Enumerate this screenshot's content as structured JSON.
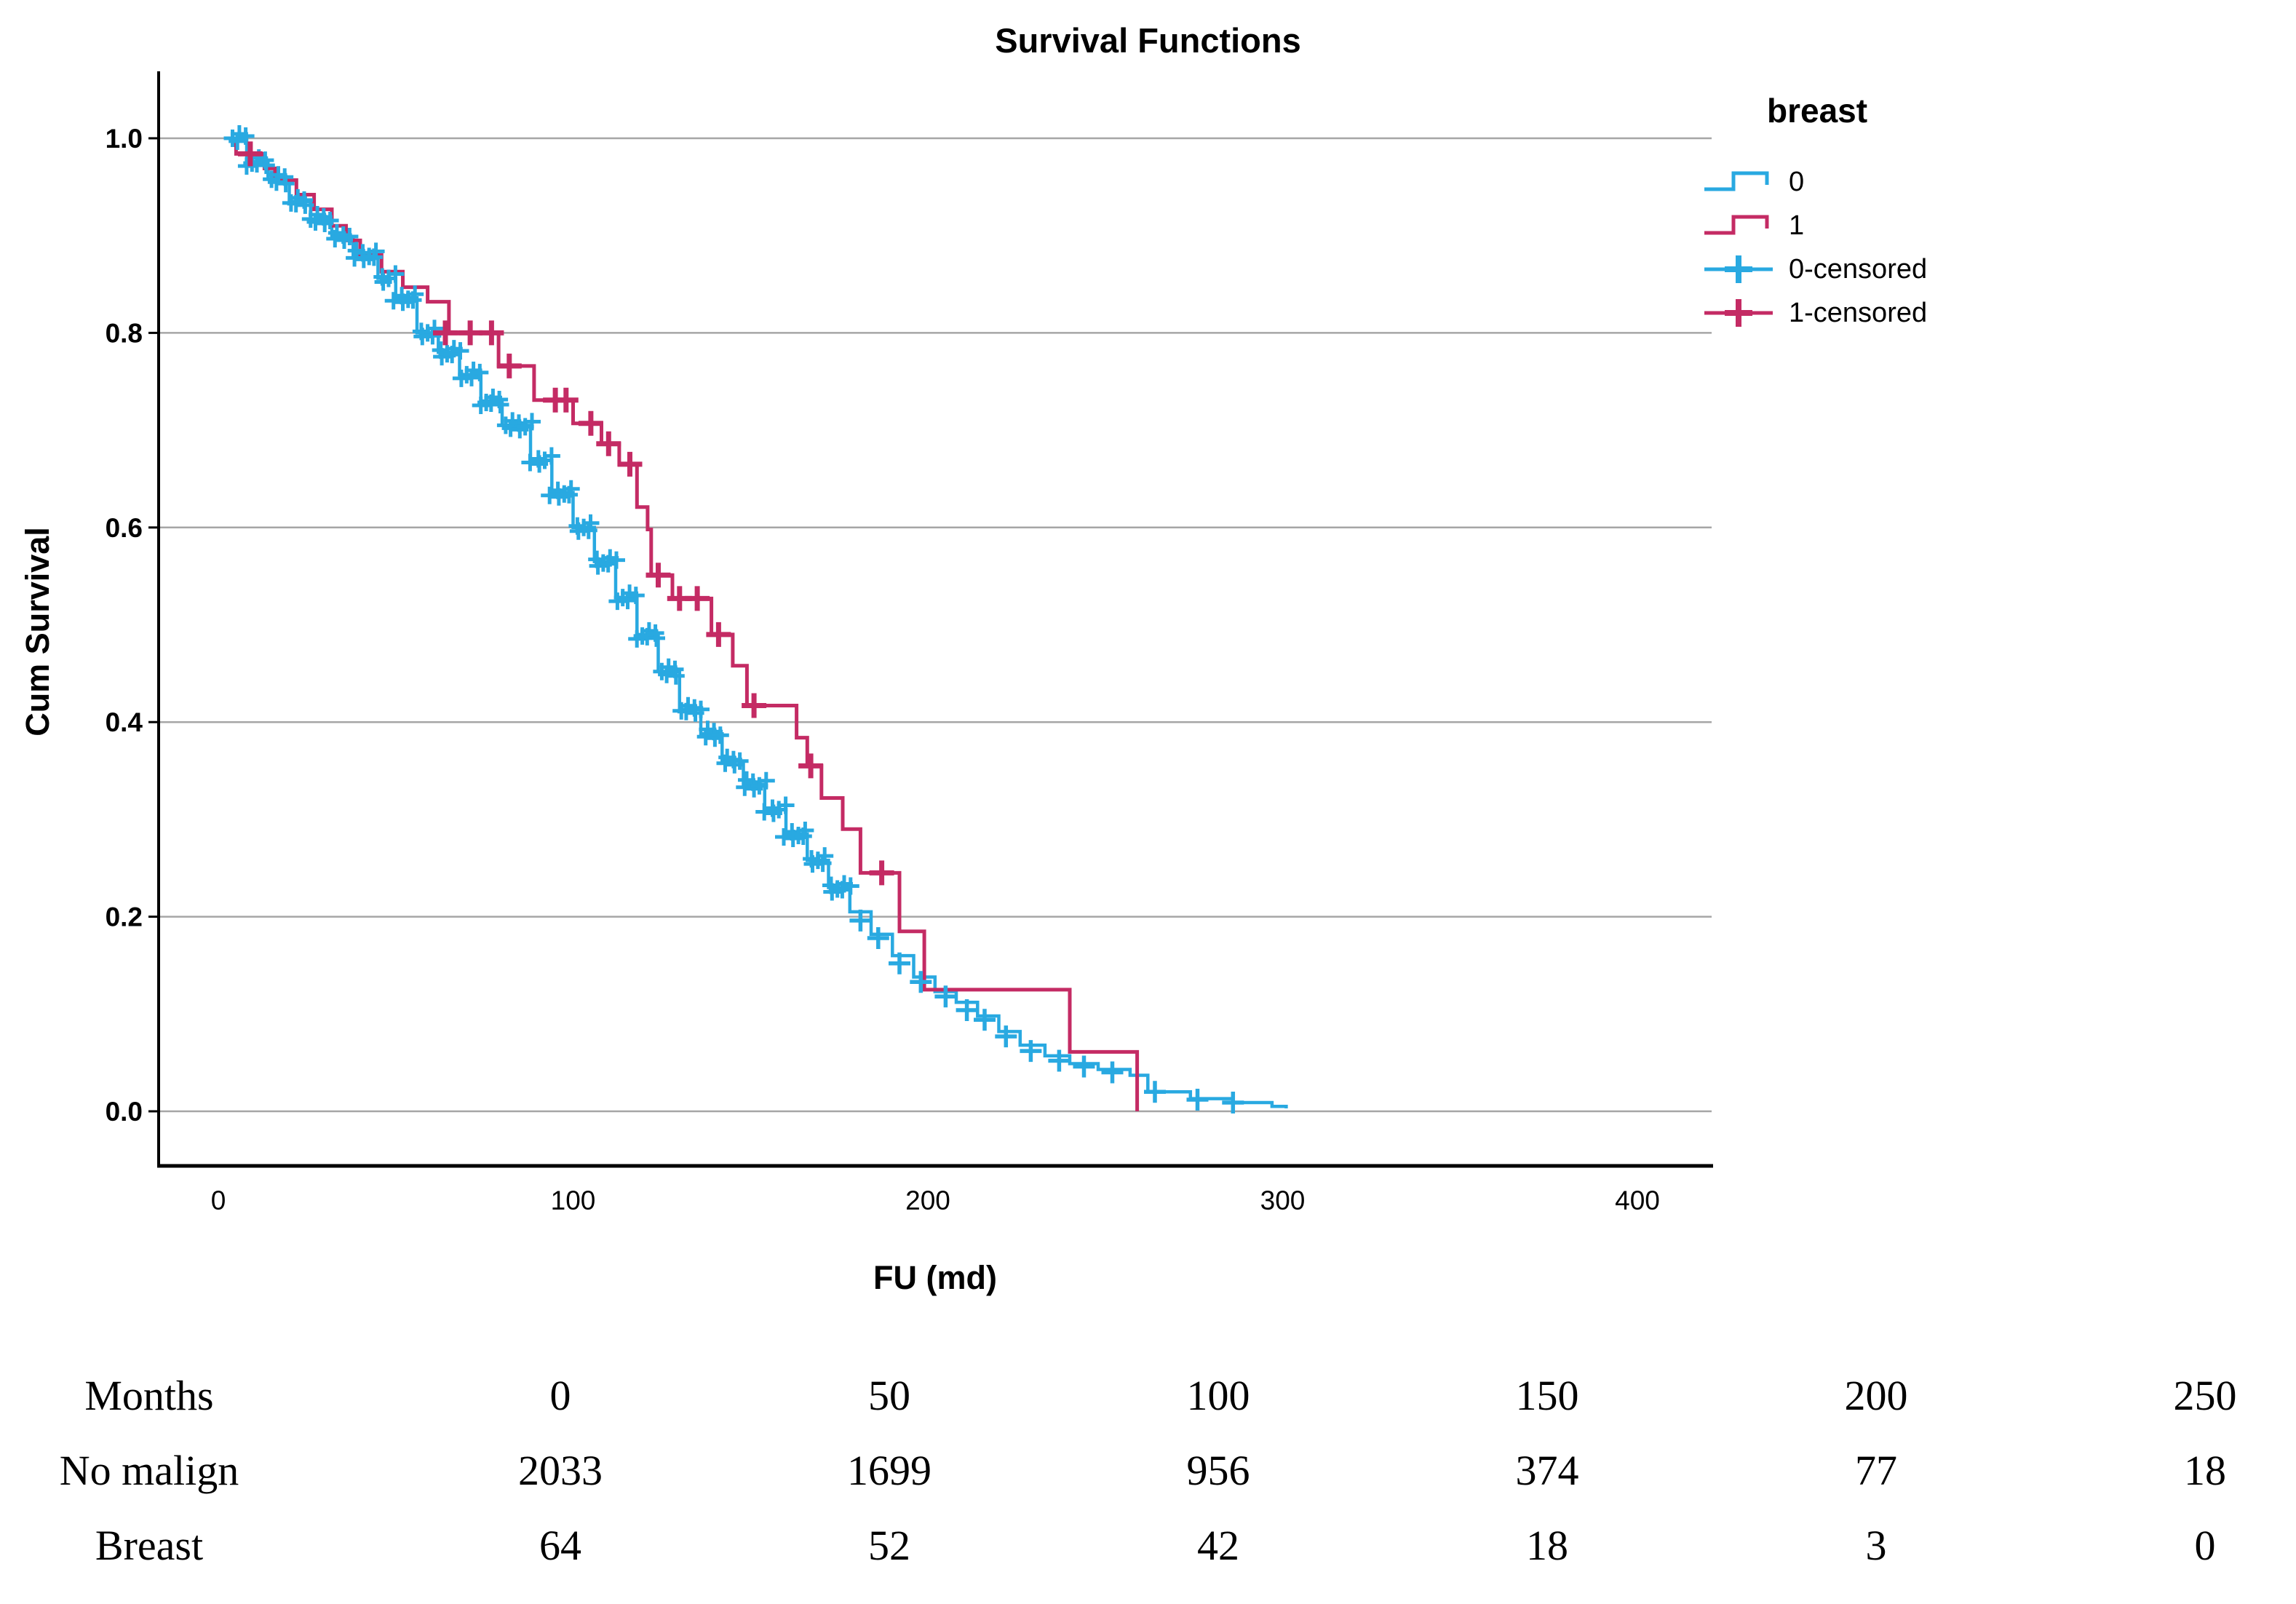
{
  "chart_data": {
    "type": "line",
    "subtype": "kaplan-meier-step-function",
    "title": "Survival Functions",
    "xlabel": "FU (md)",
    "ylabel": "Cum Survival",
    "xlim": [
      0,
      400
    ],
    "ylim": [
      0.0,
      1.0
    ],
    "grid": "horizontal",
    "x_ticks": [
      0,
      100,
      200,
      300,
      400
    ],
    "y_ticks": [
      1.0,
      0.8,
      0.6,
      0.4,
      0.2,
      0.0
    ],
    "colors": {
      "series0": "#29A9E1",
      "series1": "#C42B64",
      "gridline": "#A6A6A6",
      "axis": "#000000"
    },
    "legend": {
      "title": "breast",
      "position": "right",
      "entries": [
        {
          "label": "0",
          "type": "step",
          "color": "#29A9E1"
        },
        {
          "label": "1",
          "type": "step",
          "color": "#C42B64"
        },
        {
          "label": "0-censored",
          "type": "plus",
          "color": "#29A9E1"
        },
        {
          "label": "1-censored",
          "type": "plus",
          "color": "#C42B64"
        }
      ]
    },
    "series": [
      {
        "name": "0",
        "color": "#29A9E1",
        "points": [
          [
            3,
            1.0
          ],
          [
            8,
            0.976
          ],
          [
            14,
            0.958
          ],
          [
            20,
            0.935
          ],
          [
            26,
            0.917
          ],
          [
            32,
            0.899
          ],
          [
            38,
            0.88
          ],
          [
            45,
            0.856
          ],
          [
            50,
            0.836
          ],
          [
            56,
            0.8
          ],
          [
            62,
            0.78
          ],
          [
            68,
            0.757
          ],
          [
            74,
            0.73
          ],
          [
            80,
            0.705
          ],
          [
            88,
            0.669
          ],
          [
            94,
            0.636
          ],
          [
            100,
            0.6
          ],
          [
            106,
            0.565
          ],
          [
            112,
            0.528
          ],
          [
            118,
            0.49
          ],
          [
            124,
            0.452
          ],
          [
            130,
            0.413
          ],
          [
            136,
            0.388
          ],
          [
            142,
            0.36
          ],
          [
            148,
            0.336
          ],
          [
            154,
            0.31
          ],
          [
            160,
            0.285
          ],
          [
            166,
            0.258
          ],
          [
            172,
            0.23
          ],
          [
            178,
            0.205
          ],
          [
            184,
            0.182
          ],
          [
            190,
            0.16
          ],
          [
            196,
            0.138
          ],
          [
            202,
            0.123
          ],
          [
            208,
            0.112
          ],
          [
            214,
            0.098
          ],
          [
            220,
            0.082
          ],
          [
            226,
            0.068
          ],
          [
            233,
            0.057
          ],
          [
            240,
            0.049
          ],
          [
            248,
            0.043
          ],
          [
            257,
            0.037
          ],
          [
            262,
            0.02
          ],
          [
            274,
            0.013
          ],
          [
            286,
            0.009
          ],
          [
            297,
            0.005
          ],
          [
            301,
            0.003
          ]
        ],
        "censor_band": {
          "from": 4,
          "to": 178,
          "step": 1.1
        },
        "censors": [
          [
            181,
            0.196
          ],
          [
            186,
            0.178
          ],
          [
            192,
            0.152
          ],
          [
            198,
            0.133
          ],
          [
            205,
            0.118
          ],
          [
            211,
            0.104
          ],
          [
            216,
            0.094
          ],
          [
            222,
            0.077
          ],
          [
            229,
            0.062
          ],
          [
            237,
            0.052
          ],
          [
            244,
            0.046
          ],
          [
            252,
            0.04
          ],
          [
            264,
            0.02
          ],
          [
            276,
            0.012
          ],
          [
            286,
            0.009
          ]
        ]
      },
      {
        "name": "1",
        "color": "#C42B64",
        "points": [
          [
            3,
            1.0
          ],
          [
            5,
            0.984
          ],
          [
            13,
            0.969
          ],
          [
            16,
            0.957
          ],
          [
            22,
            0.942
          ],
          [
            27,
            0.927
          ],
          [
            32,
            0.91
          ],
          [
            36,
            0.895
          ],
          [
            40,
            0.88
          ],
          [
            46,
            0.863
          ],
          [
            52,
            0.847
          ],
          [
            59,
            0.832
          ],
          [
            65,
            0.8
          ],
          [
            79,
            0.766
          ],
          [
            89,
            0.731
          ],
          [
            100,
            0.707
          ],
          [
            108,
            0.686
          ],
          [
            113,
            0.665
          ],
          [
            118,
            0.621
          ],
          [
            121,
            0.598
          ],
          [
            122,
            0.551
          ],
          [
            128,
            0.527
          ],
          [
            139,
            0.49
          ],
          [
            145,
            0.458
          ],
          [
            149,
            0.417
          ],
          [
            163,
            0.384
          ],
          [
            166,
            0.355
          ],
          [
            170,
            0.322
          ],
          [
            176,
            0.29
          ],
          [
            181,
            0.245
          ],
          [
            192,
            0.185
          ],
          [
            199,
            0.125
          ],
          [
            240,
            0.061
          ],
          [
            259,
            0.0
          ]
        ],
        "censors": [
          [
            9,
            0.984
          ],
          [
            64,
            0.8
          ],
          [
            71,
            0.8
          ],
          [
            77,
            0.8
          ],
          [
            82,
            0.766
          ],
          [
            95,
            0.731
          ],
          [
            98,
            0.731
          ],
          [
            105,
            0.707
          ],
          [
            110,
            0.686
          ],
          [
            116,
            0.665
          ],
          [
            124,
            0.551
          ],
          [
            130,
            0.527
          ],
          [
            135,
            0.527
          ],
          [
            141,
            0.49
          ],
          [
            151,
            0.417
          ],
          [
            167,
            0.355
          ],
          [
            187,
            0.245
          ]
        ]
      }
    ]
  },
  "risk_table": {
    "rows": [
      {
        "label": "Months",
        "values": [
          "0",
          "50",
          "100",
          "150",
          "200",
          "250"
        ]
      },
      {
        "label": "No malign",
        "values": [
          "2033",
          "1699",
          "956",
          "374",
          "77",
          "18"
        ]
      },
      {
        "label": "Breast",
        "values": [
          "64",
          "52",
          "42",
          "18",
          "3",
          "0"
        ]
      }
    ]
  }
}
